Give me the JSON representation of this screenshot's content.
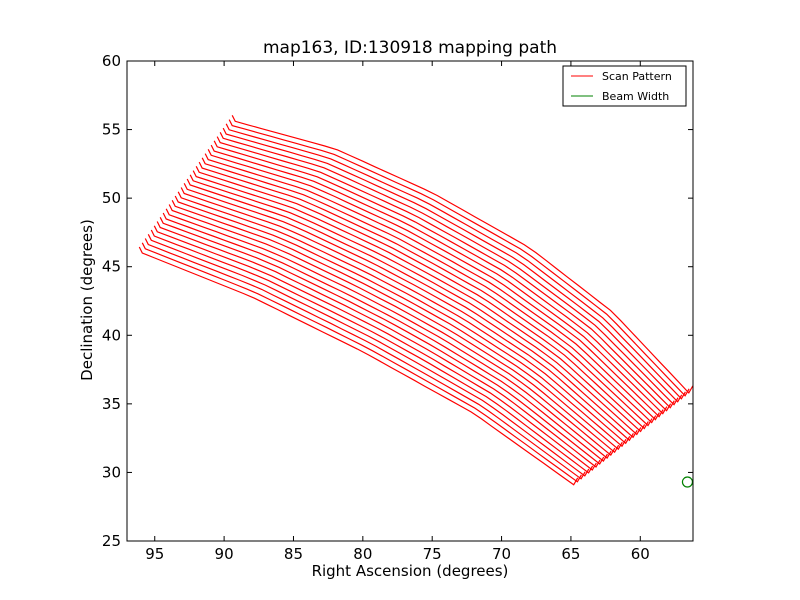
{
  "chart_data": {
    "type": "line",
    "title": "map163, ID:130918 mapping path",
    "xlabel": "Right Ascension (degrees)",
    "ylabel": "Declination (degrees)",
    "xlim": [
      97,
      56.2
    ],
    "ylim": [
      25,
      60
    ],
    "xticks": [
      95,
      90,
      85,
      80,
      75,
      70,
      65,
      60
    ],
    "yticks": [
      25,
      30,
      35,
      40,
      45,
      50,
      55,
      60
    ],
    "x_inverted": true,
    "grid": false,
    "legend_position": "top-right",
    "series": [
      {
        "name": "Scan Pattern",
        "color": "#ff0000",
        "scan_lines": {
          "count": 32,
          "first": [
            [
              95.9,
              46.0
            ],
            [
              88.0,
              42.8
            ],
            [
              80.0,
              38.8
            ],
            [
              72.0,
              34.3
            ],
            [
              64.8,
              29.1
            ]
          ],
          "last": [
            [
              89.2,
              55.6
            ],
            [
              82.0,
              53.6
            ],
            [
              75.0,
              50.4
            ],
            [
              68.0,
              46.4
            ],
            [
              62.0,
              41.7
            ],
            [
              56.5,
              35.8
            ]
          ]
        }
      },
      {
        "name": "Beam Width",
        "color": "#008000",
        "marker": "circle",
        "points": [
          {
            "x": 56.6,
            "y": 29.3
          }
        ]
      }
    ]
  }
}
